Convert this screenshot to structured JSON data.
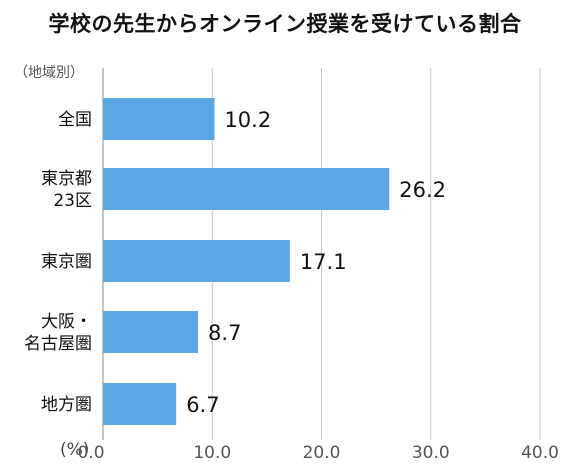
{
  "title": "学校の先生からオンライン授業を受けている割合",
  "subtitle": "（地域別）",
  "unit_label": "(%)",
  "chart_data": {
    "type": "bar",
    "orientation": "horizontal",
    "categories": [
      [
        "全国"
      ],
      [
        "東京都",
        "23区"
      ],
      [
        "東京圏"
      ],
      [
        "大阪・",
        "名古屋圏"
      ],
      [
        "地方圏"
      ]
    ],
    "values": [
      10.2,
      26.2,
      17.1,
      8.7,
      6.7
    ],
    "value_labels": [
      "10.2",
      "26.2",
      "17.1",
      "8.7",
      "6.7"
    ],
    "xlim": [
      0,
      40
    ],
    "xticks": [
      "0.0",
      "10.0",
      "20.0",
      "30.0",
      "40.0"
    ],
    "grid": true,
    "bar_color": "#5ba6e6",
    "grid_color": "#c8c8c8"
  }
}
